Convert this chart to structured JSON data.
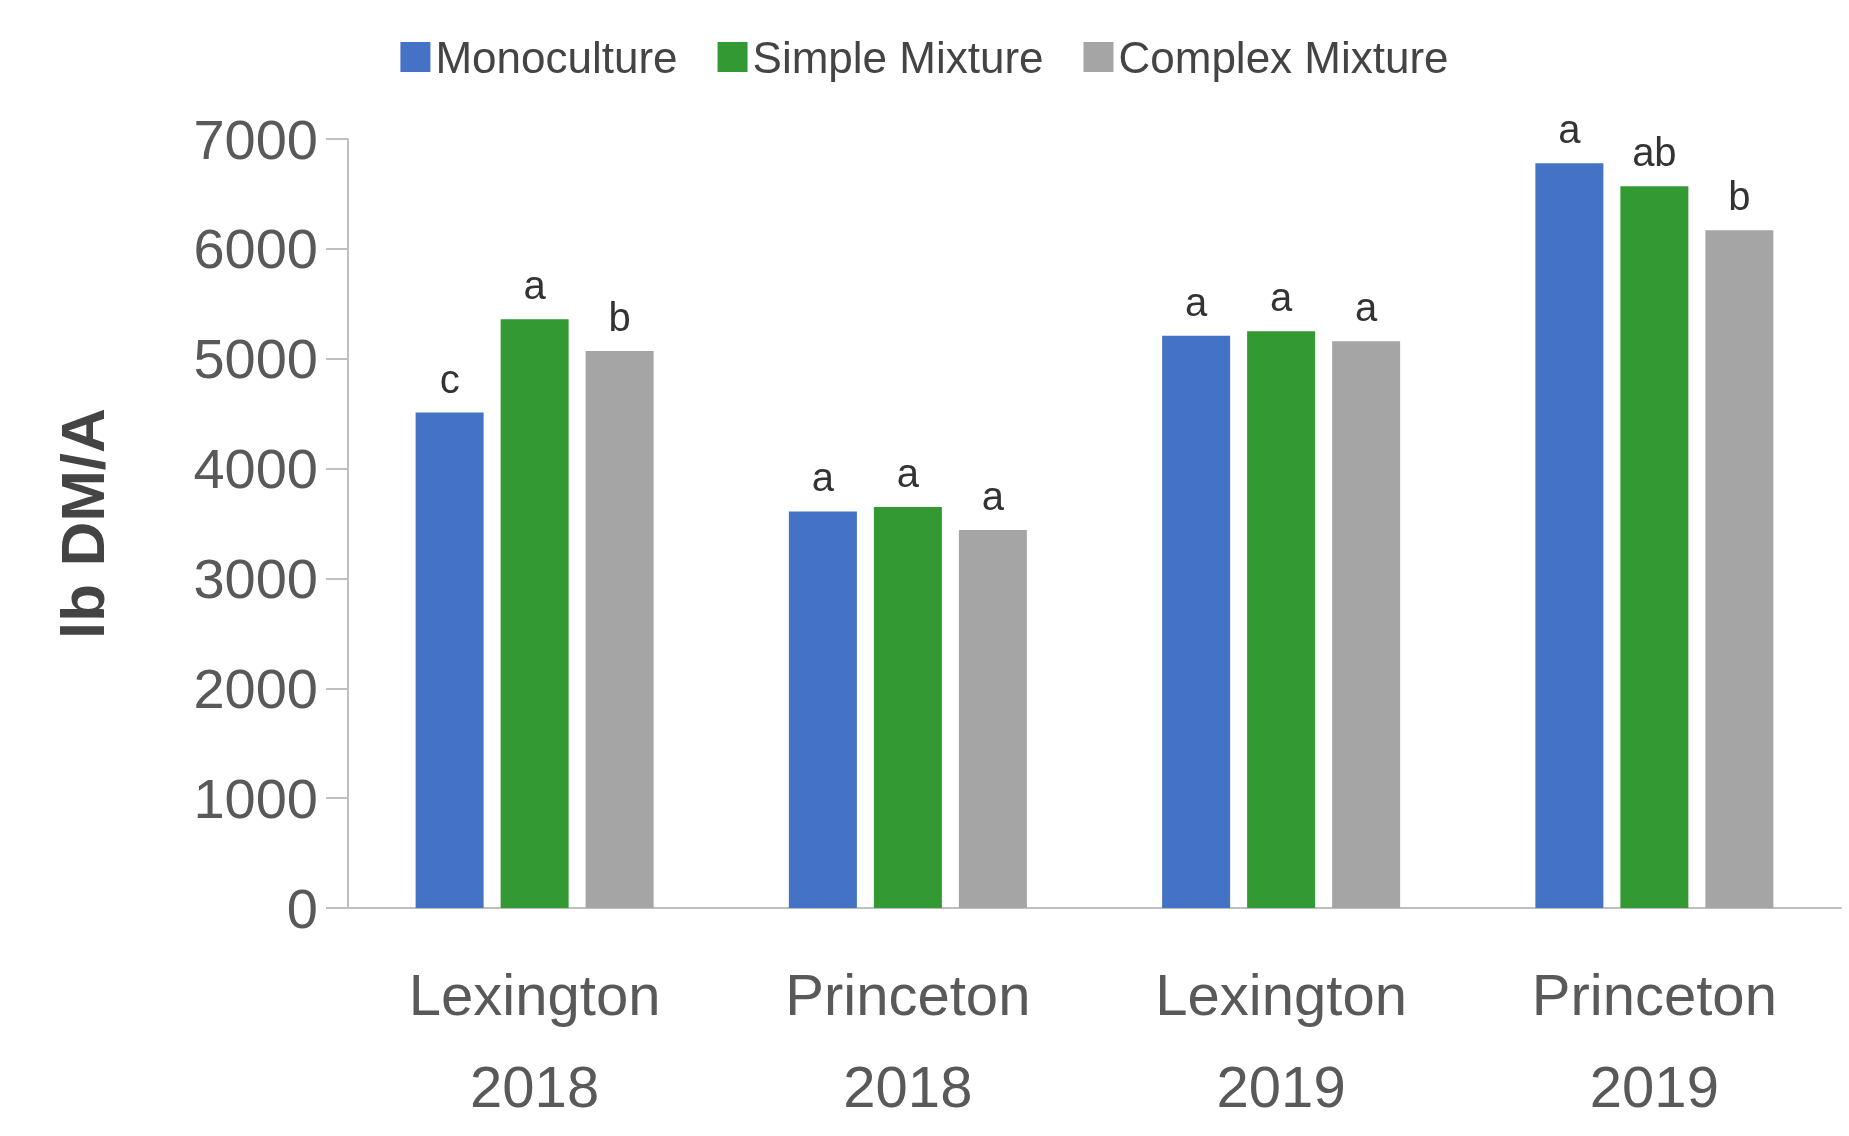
{
  "chart_data": {
    "type": "bar",
    "ylabel": "lb DM/A",
    "categories": [
      "Lexington\n2018",
      "Princeton\n2018",
      "Lexington\n2019",
      "Princeton\n2019"
    ],
    "series": [
      {
        "name": "Monoculture",
        "color": "#4472c4",
        "values": [
          4510,
          3610,
          5210,
          6780
        ],
        "value_labels": [
          "c",
          "a",
          "a",
          "a"
        ]
      },
      {
        "name": "Simple Mixture",
        "color": "#339933",
        "values": [
          5360,
          3650,
          5250,
          6570
        ],
        "value_labels": [
          "a",
          "a",
          "a",
          "ab"
        ]
      },
      {
        "name": "Complex Mixture",
        "color": "#a5a5a5",
        "values": [
          5070,
          3440,
          5160,
          6170
        ],
        "value_labels": [
          "b",
          "a",
          "a",
          "b"
        ]
      }
    ],
    "ylim": [
      0,
      7000
    ],
    "yticks": [
      0,
      1000,
      2000,
      3000,
      4000,
      5000,
      6000,
      7000
    ],
    "grid": false,
    "legend": "top"
  }
}
